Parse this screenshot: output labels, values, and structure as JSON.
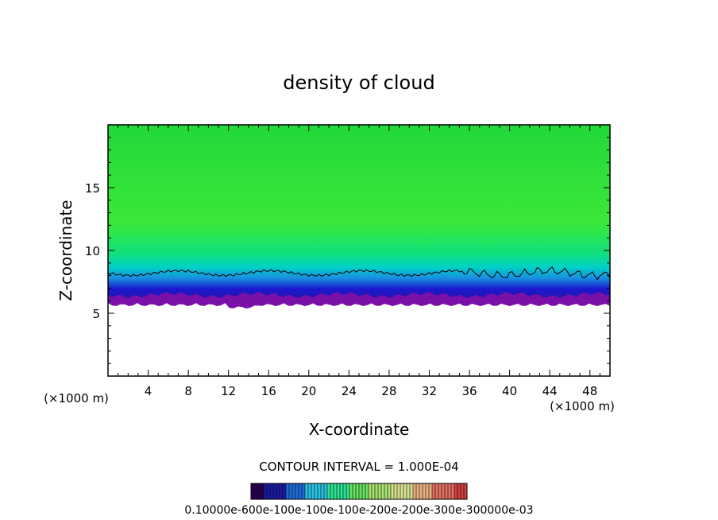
{
  "chart_data": {
    "type": "heatmap",
    "title": "density of cloud",
    "xlabel": "X-coordinate",
    "ylabel": "Z-coordinate",
    "x_unit": "(×1000 m)",
    "y_unit": "(×1000 m)",
    "xlim": [
      0,
      50
    ],
    "ylim": [
      0,
      20
    ],
    "x_ticks": [
      4,
      8,
      12,
      16,
      20,
      24,
      28,
      32,
      36,
      40,
      44,
      48
    ],
    "y_ticks": [
      5,
      10,
      15
    ],
    "cloud_base_km": 6.2,
    "contour_line_km": 8.2,
    "fields": {
      "upper_color": "#22e03a",
      "mid_color": "#00d0c0",
      "low_color": "#1a1ac8",
      "base_color": "#7a10a8"
    },
    "contour_interval_text": "CONTOUR INTERVAL = 1.000E-04",
    "colorbar_label": "0.10000e-600e-100e-100e-100e-200e-200e-300e-300000e-03",
    "colorbar_colors": [
      "#2a0050",
      "#1a1aa0",
      "#1e6ad8",
      "#2ac0e0",
      "#2ee090",
      "#66e060",
      "#a8e070",
      "#d8e090",
      "#e8b080",
      "#e07060",
      "#d04040"
    ]
  }
}
